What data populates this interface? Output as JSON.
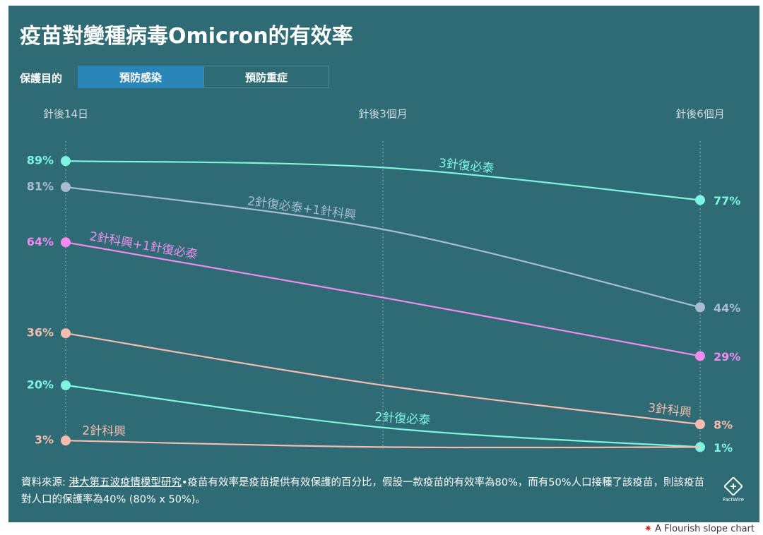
{
  "title": "疫苗對變種病毒Omicron的有效率",
  "controls": {
    "label": "保護目的",
    "tabs": [
      "預防感染",
      "預防重症"
    ],
    "active": 0
  },
  "chart_data": {
    "type": "slope",
    "categories": [
      "針後14日",
      "針後3個月",
      "針後6個月"
    ],
    "series": [
      {
        "name": "3針復必泰",
        "color": "#7ef5e0",
        "values": [
          89,
          87,
          77
        ],
        "value_labels": [
          "89%",
          null,
          "77%"
        ]
      },
      {
        "name": "2針復必泰+1針科興",
        "color": "#a9bcd0",
        "values": [
          81,
          68,
          44
        ],
        "value_labels": [
          "81%",
          null,
          "44%"
        ]
      },
      {
        "name": "2針科興+1針復必泰",
        "color": "#f08cf0",
        "values": [
          64,
          47,
          29
        ],
        "value_labels": [
          "64%",
          null,
          "29%"
        ]
      },
      {
        "name": "3針科興",
        "color": "#f5bdb0",
        "values": [
          36,
          20,
          8
        ],
        "value_labels": [
          "36%",
          null,
          "8%"
        ]
      },
      {
        "name": "2針復必泰",
        "color": "#7ef5e0",
        "values": [
          20,
          7,
          1
        ],
        "value_labels": [
          "20%",
          null,
          "1%"
        ]
      },
      {
        "name": "2針科興",
        "color": "#f5bdb0",
        "values": [
          3,
          1,
          1
        ],
        "value_labels": [
          "3%",
          null,
          null
        ]
      }
    ]
  },
  "footer": {
    "source_label": "資料來源: ",
    "source_link": "港大第五波疫情模型研究",
    "note": "•疫苗有效率是疫苗提供有效保護的百分比，假設一款疫苗的有效率為80%，而有50%人口接種了該疫苗，則該疫苗對人口的保護率為40% (80% x 50%)。",
    "logo_text": "FactWire"
  },
  "credit": "A Flourish slope chart"
}
